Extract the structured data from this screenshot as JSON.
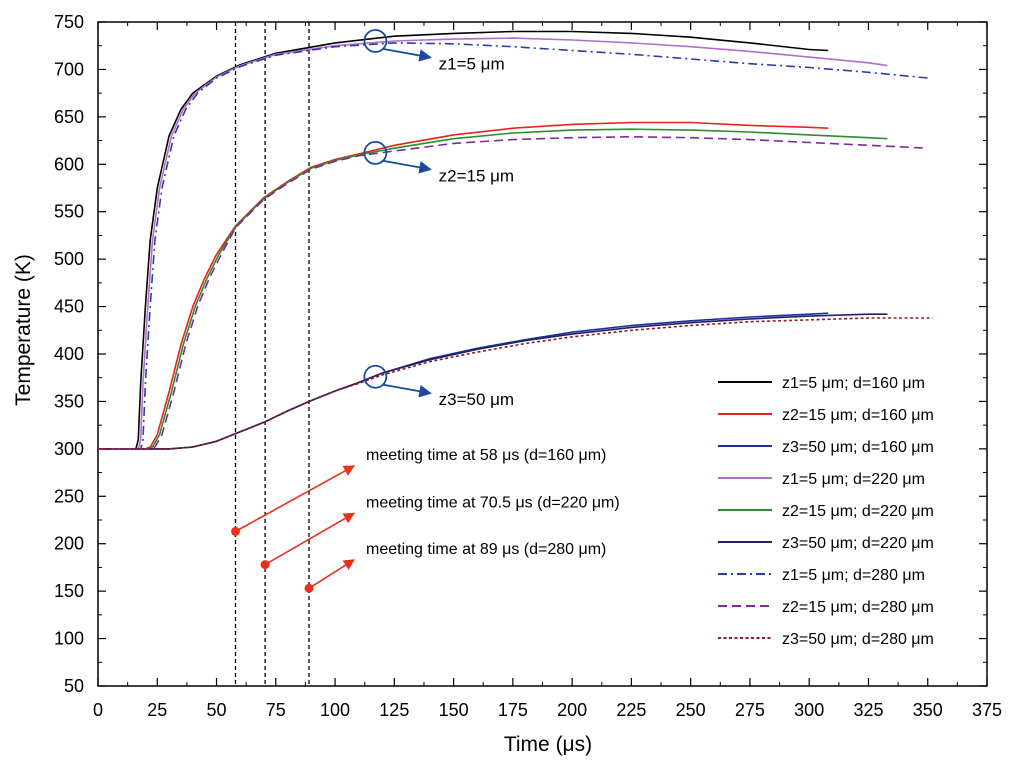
{
  "chart_data": {
    "type": "line",
    "title": "",
    "xlabel": "Time (μs)",
    "ylabel": "Temperature (K)",
    "xlim": [
      0,
      375
    ],
    "ylim": [
      50,
      750
    ],
    "xticks": [
      0,
      25,
      50,
      75,
      100,
      125,
      150,
      175,
      200,
      225,
      250,
      275,
      300,
      325,
      350,
      375
    ],
    "yticks": [
      50,
      100,
      150,
      200,
      250,
      300,
      350,
      400,
      450,
      500,
      550,
      600,
      650,
      700,
      750
    ],
    "grid": false,
    "legend_position": "right",
    "series": [
      {
        "name": "z1=5 μm; d=160 μm",
        "color": "#000000",
        "dash": "solid",
        "points": [
          [
            0,
            300
          ],
          [
            16,
            300
          ],
          [
            17,
            310
          ],
          [
            18,
            370
          ],
          [
            20,
            450
          ],
          [
            22,
            520
          ],
          [
            25,
            575
          ],
          [
            30,
            630
          ],
          [
            35,
            658
          ],
          [
            40,
            675
          ],
          [
            50,
            693
          ],
          [
            60,
            705
          ],
          [
            75,
            717
          ],
          [
            100,
            728
          ],
          [
            125,
            735
          ],
          [
            150,
            738
          ],
          [
            175,
            740
          ],
          [
            200,
            740
          ],
          [
            225,
            738
          ],
          [
            250,
            734
          ],
          [
            275,
            728
          ],
          [
            300,
            721
          ],
          [
            308,
            720
          ]
        ]
      },
      {
        "name": "z2=15 μm; d=160 μm",
        "color": "#e8231b",
        "dash": "solid",
        "points": [
          [
            0,
            300
          ],
          [
            20,
            300
          ],
          [
            22,
            302
          ],
          [
            25,
            315
          ],
          [
            30,
            360
          ],
          [
            35,
            410
          ],
          [
            40,
            450
          ],
          [
            45,
            480
          ],
          [
            50,
            505
          ],
          [
            58,
            535
          ],
          [
            70,
            565
          ],
          [
            80,
            582
          ],
          [
            90,
            597
          ],
          [
            100,
            605
          ],
          [
            110,
            611
          ],
          [
            125,
            620
          ],
          [
            150,
            631
          ],
          [
            175,
            638
          ],
          [
            200,
            642
          ],
          [
            225,
            644
          ],
          [
            250,
            644
          ],
          [
            275,
            641
          ],
          [
            300,
            639
          ],
          [
            308,
            638
          ]
        ]
      },
      {
        "name": "z3=50 μm; d=160 μm",
        "color": "#1a2fa0",
        "dash": "solid",
        "points": [
          [
            0,
            300
          ],
          [
            30,
            300
          ],
          [
            40,
            302
          ],
          [
            50,
            308
          ],
          [
            60,
            318
          ],
          [
            70,
            328
          ],
          [
            80,
            340
          ],
          [
            90,
            351
          ],
          [
            100,
            361
          ],
          [
            110,
            370
          ],
          [
            120,
            380
          ],
          [
            140,
            395
          ],
          [
            160,
            406
          ],
          [
            180,
            415
          ],
          [
            200,
            423
          ],
          [
            225,
            430
          ],
          [
            250,
            435
          ],
          [
            275,
            439
          ],
          [
            300,
            442
          ],
          [
            308,
            443
          ]
        ]
      },
      {
        "name": "z1=5 μm; d=220 μm",
        "color": "#b070c8",
        "dash": "solid",
        "points": [
          [
            0,
            300
          ],
          [
            17,
            300
          ],
          [
            18,
            310
          ],
          [
            19,
            370
          ],
          [
            21,
            450
          ],
          [
            23,
            520
          ],
          [
            26,
            575
          ],
          [
            31,
            630
          ],
          [
            36,
            658
          ],
          [
            41,
            675
          ],
          [
            50,
            692
          ],
          [
            60,
            704
          ],
          [
            75,
            716
          ],
          [
            100,
            725
          ],
          [
            125,
            730
          ],
          [
            150,
            732
          ],
          [
            175,
            733
          ],
          [
            200,
            731
          ],
          [
            225,
            728
          ],
          [
            250,
            724
          ],
          [
            275,
            719
          ],
          [
            300,
            713
          ],
          [
            325,
            707
          ],
          [
            333,
            704
          ]
        ]
      },
      {
        "name": "z2=15 μm; d=220 μm",
        "color": "#2e8b2e",
        "dash": "solid",
        "points": [
          [
            0,
            300
          ],
          [
            21,
            300
          ],
          [
            23,
            302
          ],
          [
            26,
            315
          ],
          [
            31,
            360
          ],
          [
            36,
            410
          ],
          [
            41,
            450
          ],
          [
            46,
            480
          ],
          [
            51,
            505
          ],
          [
            58,
            534
          ],
          [
            70,
            564
          ],
          [
            80,
            581
          ],
          [
            90,
            596
          ],
          [
            100,
            604
          ],
          [
            110,
            610
          ],
          [
            125,
            617
          ],
          [
            150,
            627
          ],
          [
            175,
            633
          ],
          [
            200,
            636
          ],
          [
            225,
            637
          ],
          [
            250,
            636
          ],
          [
            275,
            634
          ],
          [
            300,
            631
          ],
          [
            325,
            628
          ],
          [
            333,
            627
          ]
        ]
      },
      {
        "name": "z3=50 μm; d=220 μm",
        "color": "#232066",
        "dash": "solid",
        "points": [
          [
            0,
            300
          ],
          [
            30,
            300
          ],
          [
            40,
            302
          ],
          [
            50,
            308
          ],
          [
            60,
            318
          ],
          [
            70,
            328
          ],
          [
            80,
            340
          ],
          [
            90,
            351
          ],
          [
            100,
            361
          ],
          [
            110,
            370
          ],
          [
            120,
            380
          ],
          [
            140,
            394
          ],
          [
            160,
            405
          ],
          [
            180,
            414
          ],
          [
            200,
            421
          ],
          [
            225,
            428
          ],
          [
            250,
            433
          ],
          [
            275,
            437
          ],
          [
            300,
            440
          ],
          [
            325,
            442
          ],
          [
            333,
            442
          ]
        ]
      },
      {
        "name": "z1=5 μm; d=280 μm",
        "color": "#2a3ea8",
        "dash": "dashdot",
        "points": [
          [
            0,
            300
          ],
          [
            18,
            300
          ],
          [
            19,
            310
          ],
          [
            20,
            370
          ],
          [
            22,
            450
          ],
          [
            24,
            520
          ],
          [
            27,
            575
          ],
          [
            32,
            630
          ],
          [
            37,
            658
          ],
          [
            42,
            675
          ],
          [
            50,
            691
          ],
          [
            60,
            703
          ],
          [
            75,
            715
          ],
          [
            100,
            724
          ],
          [
            125,
            728
          ],
          [
            150,
            727
          ],
          [
            175,
            724
          ],
          [
            200,
            720
          ],
          [
            225,
            716
          ],
          [
            250,
            711
          ],
          [
            275,
            706
          ],
          [
            300,
            702
          ],
          [
            325,
            697
          ],
          [
            350,
            691
          ]
        ]
      },
      {
        "name": "z2=15 μm; d=280 μm",
        "color": "#7a2d9a",
        "dash": "dashed",
        "points": [
          [
            0,
            300
          ],
          [
            22,
            300
          ],
          [
            24,
            302
          ],
          [
            27,
            315
          ],
          [
            32,
            360
          ],
          [
            37,
            410
          ],
          [
            42,
            450
          ],
          [
            47,
            480
          ],
          [
            52,
            505
          ],
          [
            58,
            533
          ],
          [
            70,
            563
          ],
          [
            80,
            580
          ],
          [
            90,
            595
          ],
          [
            100,
            603
          ],
          [
            110,
            609
          ],
          [
            125,
            614
          ],
          [
            150,
            622
          ],
          [
            175,
            626
          ],
          [
            200,
            628
          ],
          [
            225,
            629
          ],
          [
            250,
            628
          ],
          [
            275,
            626
          ],
          [
            300,
            623
          ],
          [
            325,
            620
          ],
          [
            350,
            617
          ]
        ]
      },
      {
        "name": "z3=50 μm; d=280 μm",
        "color": "#8b1e1e",
        "dash": "dotted",
        "points": [
          [
            0,
            300
          ],
          [
            30,
            300
          ],
          [
            40,
            302
          ],
          [
            50,
            308
          ],
          [
            60,
            318
          ],
          [
            70,
            328
          ],
          [
            80,
            340
          ],
          [
            90,
            351
          ],
          [
            100,
            361
          ],
          [
            110,
            369
          ],
          [
            120,
            378
          ],
          [
            140,
            392
          ],
          [
            160,
            402
          ],
          [
            180,
            411
          ],
          [
            200,
            418
          ],
          [
            225,
            425
          ],
          [
            250,
            430
          ],
          [
            275,
            434
          ],
          [
            300,
            436
          ],
          [
            325,
            438
          ],
          [
            352,
            438
          ]
        ]
      }
    ],
    "vlines": [
      58,
      70.5,
      89
    ],
    "circle_annotations": [
      {
        "x": 117,
        "y": 730,
        "text": "z1=5 μm",
        "text_x": 142,
        "text_y": 700
      },
      {
        "x": 117,
        "y": 612,
        "text": "z2=15 μm",
        "text_x": 142,
        "text_y": 582
      },
      {
        "x": 117,
        "y": 376,
        "text": "z3=50 μm",
        "text_x": 142,
        "text_y": 346
      }
    ],
    "meeting_annotations": [
      {
        "x": 58,
        "y": 213,
        "arrow_to": [
          108,
          282
        ],
        "text": "meeting time at 58 μs (d=160 μm)"
      },
      {
        "x": 70.5,
        "y": 178,
        "arrow_to": [
          108,
          232
        ],
        "text": "meeting time at 70.5 μs (d=220 μm)"
      },
      {
        "x": 89,
        "y": 153,
        "arrow_to": [
          108,
          183
        ],
        "text": "meeting time at 89 μs (d=280 μm)"
      }
    ]
  }
}
